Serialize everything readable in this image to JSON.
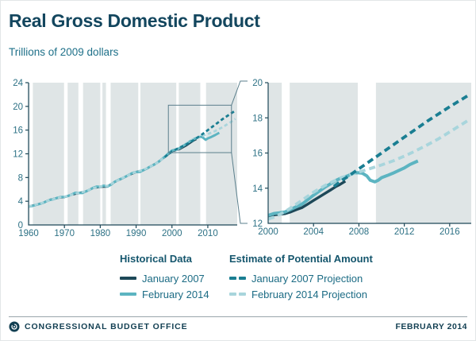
{
  "header": {
    "title": "Real Gross Domestic Product",
    "subtitle": "Trillions of 2009 dollars"
  },
  "colors": {
    "title": "#13465e",
    "subtitle": "#1e7089",
    "axis_line": "#1d4858",
    "axis_text": "#2d7185",
    "plot_bg": "#dfe5e6",
    "recession_band": "#ffffff",
    "inset_line": "#5b7f8c",
    "jan2007_history": "#1d4858",
    "feb2014_history": "#5cb4c1",
    "jan2007_projection": "#1a7e92",
    "feb2014_projection": "#a8d5dc"
  },
  "chart_data": [
    {
      "name": "left-chart",
      "type": "line",
      "xlim": [
        1960,
        2018.2
      ],
      "ylim": [
        0,
        24
      ],
      "xticks": [
        1960,
        1970,
        1980,
        1990,
        2000,
        2010
      ],
      "yticks": [
        0,
        4,
        8,
        12,
        16,
        20,
        24
      ],
      "grid": false,
      "recessions": [
        [
          1960.3,
          1961.2
        ],
        [
          1969.9,
          1970.9
        ],
        [
          1973.9,
          1975.2
        ],
        [
          1980.0,
          1980.6
        ],
        [
          1981.6,
          1982.9
        ],
        [
          1990.6,
          1991.2
        ],
        [
          2001.2,
          2001.9
        ],
        [
          2007.9,
          2009.5
        ]
      ],
      "inset_box": {
        "x0": 1999,
        "x1": 2016.6,
        "y0": 12.2,
        "y1": 20.2
      },
      "series": [
        {
          "name": "January 2007",
          "color_key": "jan2007_history",
          "dash": false,
          "width": 2.8,
          "points": [
            [
              1960,
              3.1
            ],
            [
              1962,
              3.38
            ],
            [
              1964,
              3.73
            ],
            [
              1966,
              4.24
            ],
            [
              1968,
              4.56
            ],
            [
              1970,
              4.7
            ],
            [
              1972,
              5.11
            ],
            [
              1974,
              5.37
            ],
            [
              1976,
              5.65
            ],
            [
              1978,
              6.24
            ],
            [
              1980,
              6.44
            ],
            [
              1982,
              6.48
            ],
            [
              1984,
              7.26
            ],
            [
              1986,
              7.83
            ],
            [
              1988,
              8.44
            ],
            [
              1990,
              8.92
            ],
            [
              1992,
              9.22
            ],
            [
              1994,
              9.86
            ],
            [
              1996,
              10.52
            ],
            [
              1998,
              11.48
            ],
            [
              2000,
              12.45
            ],
            [
              2002,
              12.77
            ],
            [
              2004,
              13.42
            ],
            [
              2006,
              14.25
            ],
            [
              2006.8,
              14.5
            ]
          ]
        },
        {
          "name": "February 2014",
          "color_key": "feb2014_history",
          "dash": false,
          "width": 3,
          "points": [
            [
              1960,
              3.11
            ],
            [
              1961,
              3.19
            ],
            [
              1962,
              3.38
            ],
            [
              1963,
              3.53
            ],
            [
              1964,
              3.73
            ],
            [
              1965,
              3.98
            ],
            [
              1966,
              4.24
            ],
            [
              1967,
              4.35
            ],
            [
              1968,
              4.57
            ],
            [
              1969,
              4.71
            ],
            [
              1970,
              4.72
            ],
            [
              1971,
              4.88
            ],
            [
              1972,
              5.13
            ],
            [
              1973,
              5.42
            ],
            [
              1974,
              5.39
            ],
            [
              1975,
              5.38
            ],
            [
              1976,
              5.67
            ],
            [
              1977,
              5.93
            ],
            [
              1978,
              6.26
            ],
            [
              1979,
              6.47
            ],
            [
              1980,
              6.45
            ],
            [
              1981,
              6.62
            ],
            [
              1982,
              6.49
            ],
            [
              1983,
              6.79
            ],
            [
              1984,
              7.28
            ],
            [
              1985,
              7.59
            ],
            [
              1986,
              7.85
            ],
            [
              1987,
              8.12
            ],
            [
              1988,
              8.46
            ],
            [
              1989,
              8.77
            ],
            [
              1990,
              8.94
            ],
            [
              1991,
              8.93
            ],
            [
              1992,
              9.25
            ],
            [
              1993,
              9.5
            ],
            [
              1994,
              9.89
            ],
            [
              1995,
              10.16
            ],
            [
              1996,
              10.55
            ],
            [
              1997,
              11.02
            ],
            [
              1998,
              11.51
            ],
            [
              1999,
              12.07
            ],
            [
              2000,
              12.56
            ],
            [
              2001,
              12.68
            ],
            [
              2002,
              12.91
            ],
            [
              2003,
              13.27
            ],
            [
              2004,
              13.67
            ],
            [
              2005,
              14.1
            ],
            [
              2006,
              14.45
            ],
            [
              2007,
              14.7
            ],
            [
              2007.9,
              14.88
            ],
            [
              2008.5,
              14.8
            ],
            [
              2009.4,
              14.36
            ],
            [
              2010,
              14.6
            ],
            [
              2011,
              14.85
            ],
            [
              2012,
              15.15
            ],
            [
              2013.2,
              15.55
            ]
          ]
        },
        {
          "name": "February 2014 Projection",
          "color_key": "feb2014_projection",
          "dash": true,
          "width": 2.8,
          "points": [
            [
              1960,
              3.15
            ],
            [
              1962,
              3.42
            ],
            [
              1964,
              3.76
            ],
            [
              1966,
              4.22
            ],
            [
              1968,
              4.56
            ],
            [
              1970,
              4.76
            ],
            [
              1972,
              5.1
            ],
            [
              1974,
              5.42
            ],
            [
              1976,
              5.68
            ],
            [
              1978,
              6.22
            ],
            [
              1980,
              6.5
            ],
            [
              1982,
              6.58
            ],
            [
              1984,
              7.22
            ],
            [
              1986,
              7.86
            ],
            [
              1988,
              8.44
            ],
            [
              1990,
              8.96
            ],
            [
              1992,
              9.28
            ],
            [
              1994,
              9.87
            ],
            [
              1996,
              10.52
            ],
            [
              1998,
              11.47
            ],
            [
              2000,
              12.25
            ],
            [
              2002,
              12.88
            ],
            [
              2004,
              13.77
            ],
            [
              2006,
              14.47
            ],
            [
              2008,
              14.92
            ],
            [
              2010,
              15.32
            ],
            [
              2012,
              15.82
            ],
            [
              2014,
              16.45
            ],
            [
              2016,
              17.2
            ],
            [
              2017.7,
              17.88
            ]
          ]
        },
        {
          "name": "January 2007 Projection",
          "color_key": "jan2007_projection",
          "dash": true,
          "width": 2.8,
          "points": [
            [
              1998,
              11.45
            ],
            [
              2000,
              12.4
            ],
            [
              2002,
              13.0
            ],
            [
              2004,
              13.6
            ],
            [
              2006,
              14.3
            ],
            [
              2008,
              15.1
            ],
            [
              2010,
              16.0
            ],
            [
              2012,
              16.9
            ],
            [
              2014,
              17.8
            ],
            [
              2016,
              18.63
            ],
            [
              2017.7,
              19.3
            ]
          ]
        }
      ]
    },
    {
      "name": "right-chart",
      "type": "line",
      "xlim": [
        2000,
        2017.9
      ],
      "ylim": [
        12,
        20
      ],
      "xticks": [
        2000,
        2004,
        2008,
        2012,
        2016
      ],
      "yticks": [
        12,
        14,
        16,
        18,
        20
      ],
      "grid": false,
      "recessions": [
        [
          2001.2,
          2001.9
        ],
        [
          2007.9,
          2009.5
        ]
      ],
      "series": [
        {
          "name": "January 2007",
          "color_key": "jan2007_history",
          "dash": false,
          "width": 3.4,
          "points": [
            [
              2000,
              12.4
            ],
            [
              2000.5,
              12.48
            ],
            [
              2001,
              12.52
            ],
            [
              2001.5,
              12.55
            ],
            [
              2002,
              12.65
            ],
            [
              2002.5,
              12.78
            ],
            [
              2003,
              12.9
            ],
            [
              2003.5,
              13.1
            ],
            [
              2004,
              13.3
            ],
            [
              2004.5,
              13.5
            ],
            [
              2005,
              13.7
            ],
            [
              2005.5,
              13.9
            ],
            [
              2006,
              14.1
            ],
            [
              2006.3,
              14.2
            ],
            [
              2006.8,
              14.4
            ]
          ]
        },
        {
          "name": "February 2014",
          "color_key": "feb2014_history",
          "dash": false,
          "width": 4,
          "points": [
            [
              2000,
              12.45
            ],
            [
              2000.5,
              12.56
            ],
            [
              2001,
              12.6
            ],
            [
              2001.5,
              12.65
            ],
            [
              2002,
              12.8
            ],
            [
              2002.5,
              12.95
            ],
            [
              2003,
              13.1
            ],
            [
              2003.5,
              13.35
            ],
            [
              2004,
              13.6
            ],
            [
              2004.5,
              13.83
            ],
            [
              2005,
              14.05
            ],
            [
              2005.5,
              14.25
            ],
            [
              2006,
              14.45
            ],
            [
              2006.5,
              14.6
            ],
            [
              2007,
              14.7
            ],
            [
              2007.5,
              14.85
            ],
            [
              2007.9,
              14.88
            ],
            [
              2008.3,
              14.85
            ],
            [
              2008.7,
              14.7
            ],
            [
              2009,
              14.45
            ],
            [
              2009.4,
              14.36
            ],
            [
              2009.7,
              14.45
            ],
            [
              2010,
              14.6
            ],
            [
              2010.5,
              14.72
            ],
            [
              2011,
              14.85
            ],
            [
              2011.5,
              15.0
            ],
            [
              2012,
              15.15
            ],
            [
              2012.5,
              15.35
            ],
            [
              2013.2,
              15.55
            ]
          ]
        },
        {
          "name": "February 2014 Projection",
          "color_key": "feb2014_projection",
          "dash": true,
          "width": 3.8,
          "points": [
            [
              2000,
              12.25
            ],
            [
              2000.5,
              12.35
            ],
            [
              2001,
              12.5
            ],
            [
              2001.5,
              12.68
            ],
            [
              2002,
              12.88
            ],
            [
              2003,
              13.32
            ],
            [
              2004,
              13.77
            ],
            [
              2005,
              14.15
            ],
            [
              2006,
              14.47
            ],
            [
              2007,
              14.72
            ],
            [
              2008,
              14.92
            ],
            [
              2009,
              15.12
            ],
            [
              2010,
              15.32
            ],
            [
              2011,
              15.55
            ],
            [
              2012,
              15.82
            ],
            [
              2013,
              16.12
            ],
            [
              2014,
              16.45
            ],
            [
              2015,
              16.8
            ],
            [
              2016,
              17.2
            ],
            [
              2017,
              17.6
            ],
            [
              2017.7,
              17.88
            ]
          ]
        },
        {
          "name": "January 2007 Projection",
          "color_key": "jan2007_projection",
          "dash": true,
          "width": 3.8,
          "points": [
            [
              2005.8,
              14.1
            ],
            [
              2006.5,
              14.45
            ],
            [
              2007,
              14.65
            ],
            [
              2008,
              15.1
            ],
            [
              2010,
              16.0
            ],
            [
              2012,
              16.9
            ],
            [
              2014,
              17.8
            ],
            [
              2016,
              18.63
            ],
            [
              2017.7,
              19.3
            ]
          ]
        }
      ]
    }
  ],
  "legend": {
    "columns": [
      {
        "header": "Historical Data",
        "items": [
          {
            "label": "January 2007",
            "swatch": "solid",
            "color_key": "jan2007_history"
          },
          {
            "label": "February 2014",
            "swatch": "solid",
            "color_key": "feb2014_history"
          }
        ]
      },
      {
        "header": "Estimate of Potential Amount",
        "items": [
          {
            "label": "January 2007 Projection",
            "swatch": "dashed",
            "color_key": "jan2007_projection"
          },
          {
            "label": "February 2014 Projection",
            "swatch": "dashed",
            "color_key": "feb2014_projection"
          }
        ]
      }
    ]
  },
  "footer": {
    "logo_icon": "cbo-logo-icon",
    "org": "CONGRESSIONAL BUDGET OFFICE",
    "date": "FEBRUARY 2014"
  }
}
